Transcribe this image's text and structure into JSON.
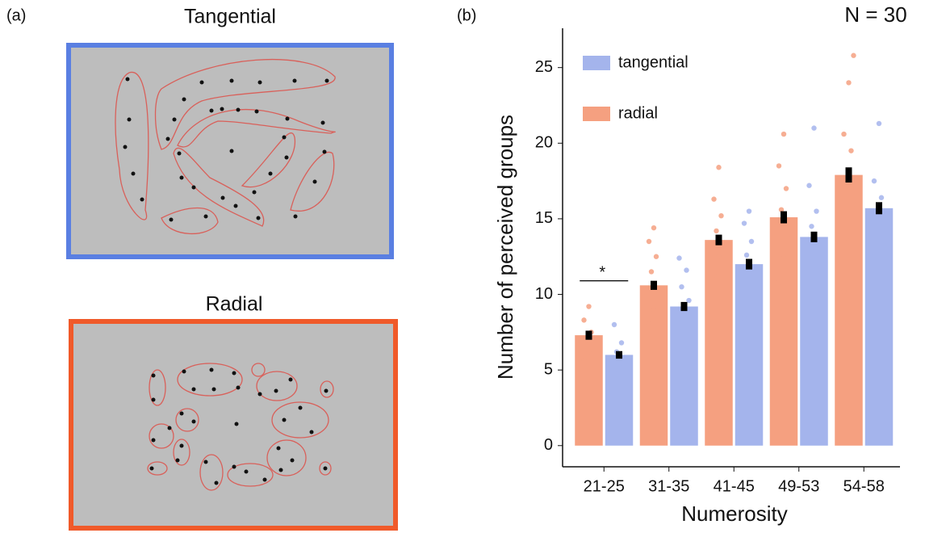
{
  "chart_data": {
    "type": "bar",
    "panel_labels": [
      "(a)",
      "(b)"
    ],
    "stimulus_titles": [
      "Tangential",
      "Radial"
    ],
    "annotation": "N = 30",
    "significance": "*",
    "x_label": "Numerosity",
    "y_label": "Number of perceived groups",
    "categories": [
      "21-25",
      "31-35",
      "41-45",
      "49-53",
      "54-58"
    ],
    "series": [
      {
        "name": "radial",
        "color": "#f5a080",
        "values": [
          7.3,
          10.6,
          13.6,
          15.1,
          17.9
        ],
        "errors": [
          0.3,
          0.3,
          0.35,
          0.4,
          0.5
        ],
        "points": [
          [
            5.6,
            6.2,
            6.8,
            7.0,
            7.5,
            8.3,
            9.2
          ],
          [
            8.1,
            9.0,
            10.2,
            11.5,
            12.5,
            13.5,
            14.4
          ],
          [
            11.3,
            12.5,
            13.3,
            14.2,
            15.2,
            16.3,
            18.4
          ],
          [
            10.8,
            12.4,
            14.0,
            15.6,
            17.0,
            18.5,
            20.6
          ],
          [
            10.2,
            13.5,
            16.0,
            17.5,
            19.5,
            20.6,
            24.0,
            25.8
          ]
        ]
      },
      {
        "name": "tangential",
        "color": "#a4b4ec",
        "values": [
          6.0,
          9.2,
          12.0,
          13.8,
          15.7
        ],
        "errors": [
          0.25,
          0.3,
          0.35,
          0.35,
          0.4
        ],
        "points": [
          [
            5.0,
            5.4,
            5.8,
            6.2,
            6.8,
            8.0
          ],
          [
            8.2,
            8.9,
            9.6,
            10.5,
            11.6,
            12.4
          ],
          [
            8.4,
            10.5,
            11.5,
            12.6,
            13.5,
            14.7,
            15.5
          ],
          [
            11.5,
            12.5,
            13.2,
            14.5,
            15.5,
            17.2,
            21.0
          ],
          [
            12.5,
            13.5,
            14.5,
            15.5,
            16.4,
            17.5,
            21.3
          ]
        ]
      }
    ],
    "legend_order": [
      1,
      0
    ],
    "ylim": [
      -1.4,
      27.6
    ],
    "yticks": [
      0,
      5,
      10,
      15,
      20,
      25
    ]
  }
}
